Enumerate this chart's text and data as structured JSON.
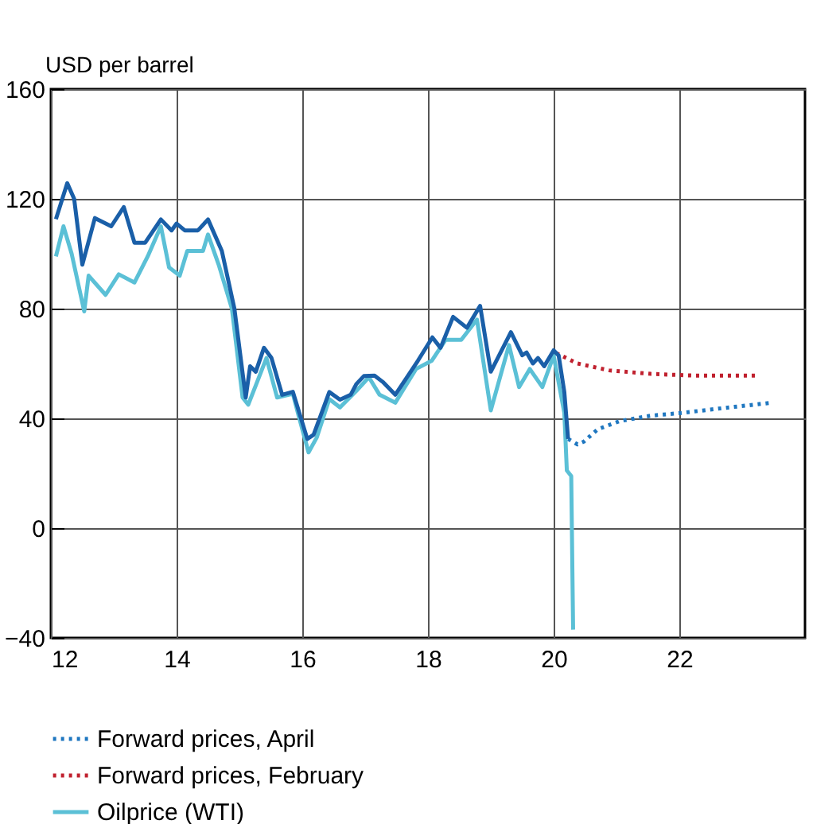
{
  "chart_data": {
    "type": "line",
    "ylabel": "USD per barrel",
    "xlim": [
      12,
      24
    ],
    "xticks": [
      12,
      14,
      16,
      18,
      20,
      22
    ],
    "ylim": [
      -40,
      160
    ],
    "yticks": [
      -40,
      0,
      40,
      80,
      120,
      160
    ],
    "grid": true,
    "legend": "bottom",
    "series": [
      {
        "name": "Forward prices, April",
        "color": "#1f77c0",
        "line_style": "dotted",
        "x": [
          20.23,
          20.38,
          20.48,
          20.7,
          21.05,
          21.55,
          22.05,
          22.72,
          23.47
        ],
        "values": [
          32.5,
          30.5,
          31.5,
          36,
          39,
          41,
          42,
          43.8,
          45.7
        ]
      },
      {
        "name": "Forward prices, February",
        "color": "#c0202e",
        "line_style": "dotted",
        "x": [
          20.04,
          20.38,
          20.88,
          21.55,
          22.22,
          23.22
        ],
        "values": [
          63.8,
          60,
          57.5,
          56.2,
          55.6,
          55.6
        ]
      },
      {
        "name": "Oilprice (WTI)",
        "color": "#5bc0d6",
        "line_style": "solid",
        "x": [
          12.08,
          12.2,
          12.33,
          12.53,
          12.6,
          12.87,
          13.08,
          13.33,
          13.54,
          13.75,
          13.88,
          14.05,
          14.17,
          14.42,
          14.5,
          14.67,
          14.88,
          15.05,
          15.14,
          15.26,
          15.43,
          15.6,
          15.85,
          15.93,
          16.1,
          16.23,
          16.43,
          16.6,
          16.86,
          17.06,
          17.23,
          17.48,
          17.81,
          18.06,
          18.28,
          18.53,
          18.78,
          19.0,
          19.29,
          19.45,
          19.62,
          19.82,
          20.0,
          20.17,
          20.21,
          20.28,
          20.31
        ],
        "values": [
          99,
          110,
          100,
          79,
          92,
          85,
          92.5,
          89.5,
          99,
          110,
          95,
          92,
          101,
          101,
          107,
          96,
          80,
          47.6,
          45,
          52,
          62,
          47.6,
          49,
          42,
          27.6,
          33,
          47,
          44,
          50,
          55,
          48.6,
          45.7,
          58,
          61,
          68.6,
          68.6,
          76,
          42.9,
          66.7,
          51.4,
          58,
          51.4,
          62.9,
          42,
          21,
          19,
          -37
        ]
      },
      {
        "color": "#1a5fa8",
        "line_style": "solid",
        "x": [
          12.08,
          12.26,
          12.37,
          12.5,
          12.7,
          12.96,
          13.16,
          13.33,
          13.5,
          13.75,
          13.92,
          14.0,
          14.13,
          14.34,
          14.5,
          14.72,
          14.92,
          15.1,
          15.17,
          15.26,
          15.39,
          15.51,
          15.68,
          15.85,
          16.08,
          16.18,
          16.43,
          16.6,
          16.77,
          16.86,
          16.98,
          17.15,
          17.28,
          17.48,
          17.84,
          18.07,
          18.2,
          18.4,
          18.62,
          18.83,
          19.0,
          19.32,
          19.5,
          19.57,
          19.67,
          19.75,
          19.85,
          20.0,
          20.08,
          20.17,
          20.23
        ],
        "values": [
          112.6,
          125.7,
          120,
          96,
          113,
          110,
          117,
          104,
          104,
          112.5,
          108.5,
          111,
          108.5,
          108.5,
          112.5,
          101,
          80,
          47.6,
          59,
          57,
          65.7,
          62,
          48.6,
          49.7,
          32.5,
          34,
          49.6,
          46.8,
          48.6,
          52.5,
          55.4,
          55.6,
          53.3,
          48.6,
          61,
          69.5,
          65.7,
          77,
          73,
          81,
          57,
          71.4,
          63,
          64,
          60,
          62,
          59,
          64.8,
          62.9,
          49.6,
          32.5
        ]
      }
    ]
  }
}
